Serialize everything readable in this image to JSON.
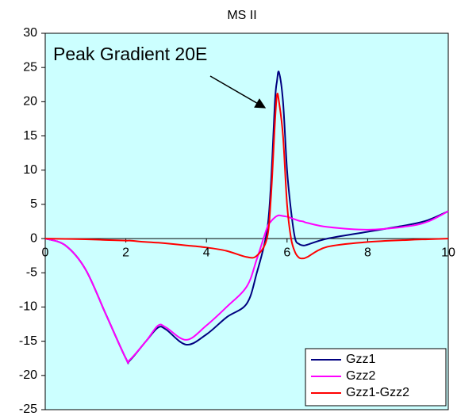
{
  "chart_data": {
    "type": "line",
    "title": "MS II",
    "annotation": "Peak Gradient 20E",
    "x": [
      0,
      0.5,
      1,
      1.5,
      2,
      2.1,
      2.5,
      2.8,
      3,
      3.5,
      4,
      4.5,
      5,
      5.25,
      5.5,
      5.6,
      5.7,
      5.75,
      5.8,
      5.9,
      6,
      6.1,
      6.2,
      6.3,
      6.4,
      6.5,
      7,
      8,
      9,
      9.5,
      10
    ],
    "series": [
      {
        "name": "Gzz1",
        "color": "#000080",
        "values": [
          0,
          -1,
          -4.5,
          -11,
          -17.5,
          -17.8,
          -15,
          -13,
          -13.3,
          -15.5,
          -14,
          -11.5,
          -9.5,
          -5,
          1,
          8,
          20,
          23,
          24.3,
          20,
          10,
          4,
          0,
          -0.8,
          -1,
          -0.9,
          0,
          1,
          2,
          2.7,
          4
        ]
      },
      {
        "name": "Gzz2",
        "color": "#ff00ff",
        "values": [
          0,
          -1,
          -4.5,
          -11,
          -17.5,
          -17.7,
          -15,
          -12.7,
          -13,
          -14.8,
          -12.7,
          -10,
          -7,
          -3,
          1.5,
          2.5,
          3.1,
          3.3,
          3.4,
          3.3,
          3.2,
          3,
          2.8,
          2.6,
          2.5,
          2.3,
          1.7,
          1.3,
          1.8,
          2.5,
          4
        ]
      },
      {
        "name": "Gzz1-Gzz2",
        "color": "#ff0000",
        "values": [
          0,
          -0.05,
          -0.1,
          -0.2,
          -0.3,
          -0.3,
          -0.5,
          -0.6,
          -0.7,
          -1,
          -1.3,
          -1.8,
          -2.7,
          -2.5,
          0,
          6,
          17,
          21,
          20,
          15,
          5,
          0,
          -2,
          -2.8,
          -2.9,
          -2.7,
          -1.2,
          -0.5,
          -0.2,
          -0.1,
          0
        ]
      }
    ],
    "xlim": [
      0,
      10
    ],
    "xticks": [
      0,
      2,
      4,
      6,
      8,
      10
    ],
    "ylim": [
      -25,
      30
    ],
    "yticks": [
      -25,
      -20,
      -15,
      -10,
      -5,
      0,
      5,
      10,
      15,
      20,
      25,
      30
    ],
    "legend": "lower right",
    "background": "#ccffff"
  }
}
